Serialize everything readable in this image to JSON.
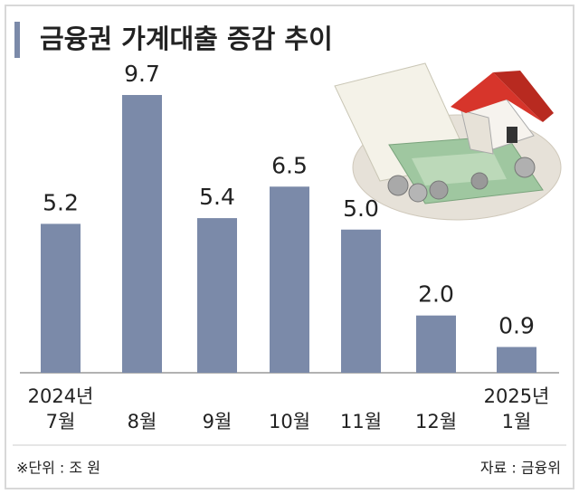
{
  "chart_data": {
    "type": "bar",
    "title": "금융권 가계대출 증감 추이",
    "categories": [
      "2024년\n7월",
      "8월",
      "9월",
      "10월",
      "11월",
      "12월",
      "2025년\n1월"
    ],
    "values": [
      5.2,
      9.7,
      5.4,
      6.5,
      5.0,
      2.0,
      0.9
    ],
    "value_labels": [
      "5.2",
      "9.7",
      "5.4",
      "6.5",
      "5.0",
      "2.0",
      "0.9"
    ],
    "color": "#7b8aa9",
    "unit_note": "※단위 : 조 원",
    "source": "자료 : 금융위"
  }
}
